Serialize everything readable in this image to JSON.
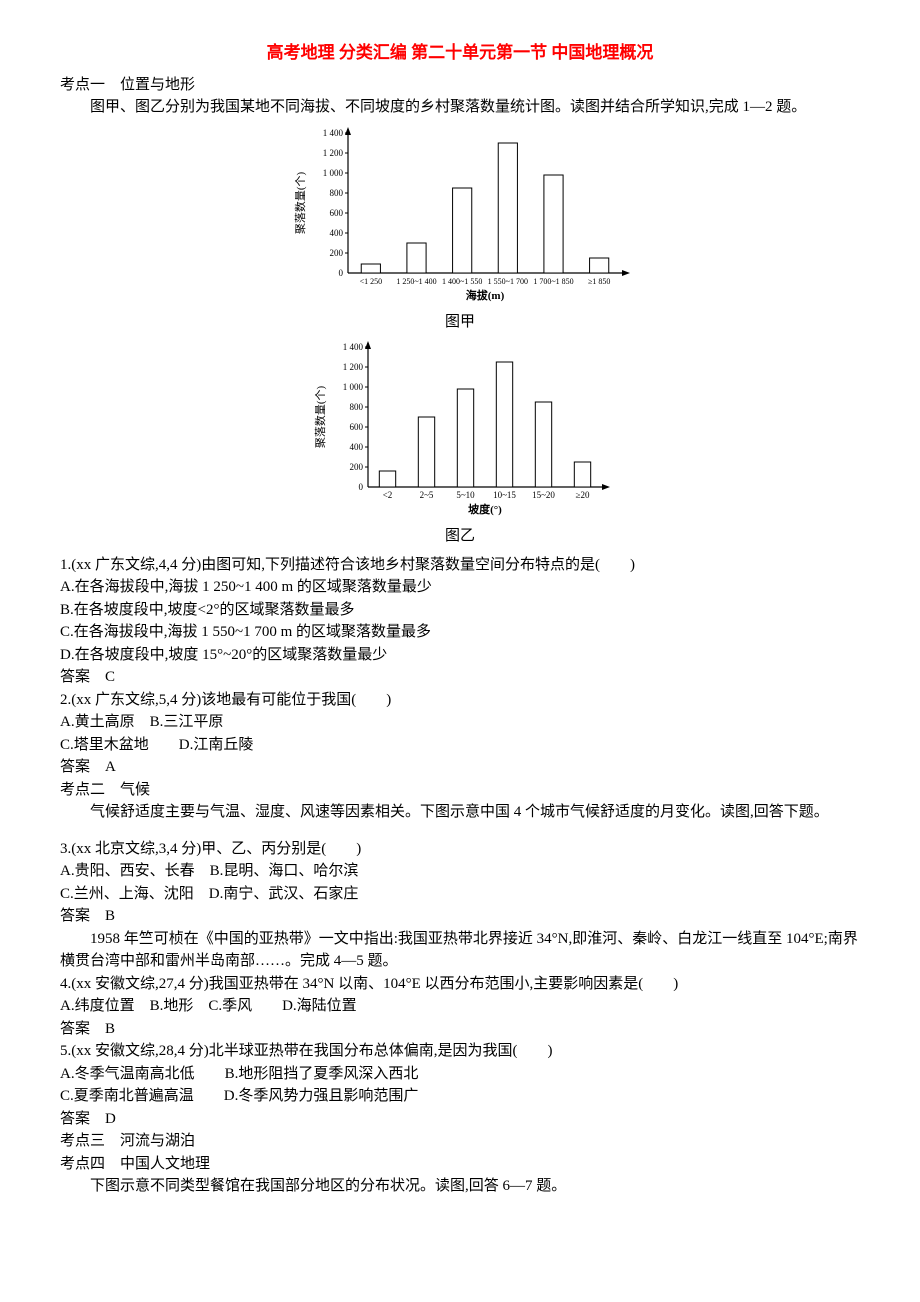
{
  "title": "高考地理 分类汇编 第二十单元第一节 中国地理概况",
  "kaodian1": "考点一　位置与地形",
  "intro1": "图甲、图乙分别为我国某地不同海拔、不同坡度的乡村聚落数量统计图。读图并结合所学知识,完成 1—2 题。",
  "chart1": {
    "ylabel": "聚落数量(个)",
    "xlabel": "海拔(m)",
    "yticks": [
      "200",
      "400",
      "600",
      "800",
      "1 000",
      "1 200",
      "1 400"
    ],
    "categories": [
      "<1 250",
      "1 250~1 400",
      "1 400~1 550",
      "1 550~1 700",
      "1 700~1 850",
      "≥1 850"
    ],
    "values": [
      90,
      300,
      850,
      1300,
      980,
      150
    ],
    "ymax": 1400,
    "bar_fill": "#ffffff",
    "bar_stroke": "#000000",
    "axis_color": "#000000",
    "caption": "图甲"
  },
  "chart2": {
    "ylabel": "聚落数量(个)",
    "xlabel": "坡度(°)",
    "yticks": [
      "200",
      "400",
      "600",
      "800",
      "1 000",
      "1 200",
      "1 400"
    ],
    "categories": [
      "<2",
      "2~5",
      "5~10",
      "10~15",
      "15~20",
      "≥20"
    ],
    "values": [
      160,
      700,
      980,
      1250,
      850,
      250
    ],
    "ymax": 1400,
    "bar_fill": "#ffffff",
    "bar_stroke": "#000000",
    "axis_color": "#000000",
    "caption": "图乙"
  },
  "q1": {
    "stem": "1.(xx 广东文综,4,4 分)由图可知,下列描述符合该地乡村聚落数量空间分布特点的是(　　)",
    "a": "A.在各海拔段中,海拔 1 250~1 400 m 的区域聚落数量最少",
    "b": "B.在各坡度段中,坡度<2°的区域聚落数量最多",
    "c": "C.在各海拔段中,海拔 1 550~1 700 m 的区域聚落数量最多",
    "d": "D.在各坡度段中,坡度 15°~20°的区域聚落数量最少",
    "ans": "答案　C"
  },
  "q2": {
    "stem": "2.(xx 广东文综,5,4 分)该地最有可能位于我国(　　)",
    "a": "A.黄土高原　B.三江平原",
    "c": "C.塔里木盆地　　D.江南丘陵",
    "ans": "答案　A"
  },
  "kaodian2": "考点二　气候",
  "intro2": "气候舒适度主要与气温、湿度、风速等因素相关。下图示意中国 4 个城市气候舒适度的月变化。读图,回答下题。",
  "q3": {
    "stem": "3.(xx 北京文综,3,4 分)甲、乙、丙分别是(　　)",
    "a": "A.贵阳、西安、长春　B.昆明、海口、哈尔滨",
    "c": "C.兰州、上海、沈阳　D.南宁、武汉、石家庄",
    "ans": "答案　B"
  },
  "intro3": "1958 年竺可桢在《中国的亚热带》一文中指出:我国亚热带北界接近 34°N,即淮河、秦岭、白龙江一线直至 104°E;南界横贯台湾中部和雷州半岛南部……。完成 4—5 题。",
  "q4": {
    "stem": "4.(xx 安徽文综,27,4 分)我国亚热带在 34°N 以南、104°E 以西分布范围小,主要影响因素是(　　)",
    "a": "A.纬度位置　B.地形　C.季风　　D.海陆位置",
    "ans": "答案　B"
  },
  "q5": {
    "stem": "5.(xx 安徽文综,28,4 分)北半球亚热带在我国分布总体偏南,是因为我国(　　)",
    "a": "A.冬季气温南高北低　　B.地形阻挡了夏季风深入西北",
    "c": "C.夏季南北普遍高温　　D.冬季风势力强且影响范围广",
    "ans": "答案　D"
  },
  "kaodian3": "考点三　河流与湖泊",
  "kaodian4": "考点四　中国人文地理",
  "intro4": "下图示意不同类型餐馆在我国部分地区的分布状况。读图,回答 6—7 题。"
}
